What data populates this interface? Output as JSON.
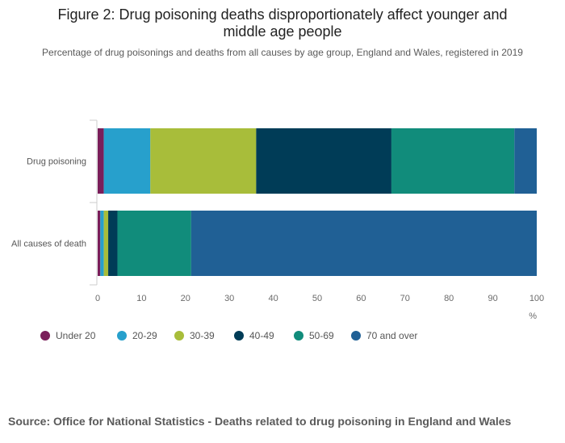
{
  "chart_data": {
    "type": "bar",
    "orientation": "horizontal",
    "stacked": true,
    "title_lines": [
      "Figure 2: Drug poisoning deaths disproportionately affect younger and",
      "middle age people"
    ],
    "subtitle": "Percentage of drug poisonings and deaths from all causes by age group, England and Wales, registered in 2019",
    "categories": [
      "Drug poisoning",
      "All causes of death"
    ],
    "series": [
      {
        "name": "Under 20",
        "color": "#7a1e5a",
        "values": [
          1.4,
          0.6
        ]
      },
      {
        "name": "20-29",
        "color": "#27a0cc",
        "values": [
          10.6,
          0.8
        ]
      },
      {
        "name": "30-39",
        "color": "#a8bd3a",
        "values": [
          24.1,
          1.0
        ]
      },
      {
        "name": "40-49",
        "color": "#003c57",
        "values": [
          30.8,
          2.1
        ]
      },
      {
        "name": "50-69",
        "color": "#118c7b",
        "values": [
          28.0,
          16.8
        ]
      },
      {
        "name": "70 and over",
        "color": "#206095",
        "values": [
          5.1,
          78.7
        ]
      }
    ],
    "xlim": [
      0,
      100
    ],
    "xticks": [
      "0",
      "10",
      "20",
      "30",
      "40",
      "50",
      "60",
      "70",
      "80",
      "90",
      "100"
    ],
    "xlabel": "%",
    "legend_position": "bottom-left",
    "grid": false
  },
  "source": "Source: Office for National Statistics - Deaths related to drug poisoning in England and Wales"
}
